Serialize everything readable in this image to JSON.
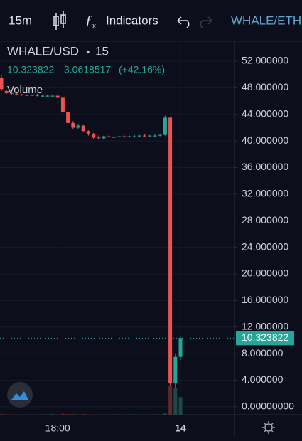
{
  "toolbar": {
    "interval": "15m",
    "indicators": "Indicators",
    "symbol_tab": "WHALE/ETH"
  },
  "chart_data": {
    "type": "candlestick",
    "title": "WHALE/USD",
    "interval": "15",
    "change": 3.0618517,
    "change_percent": {
      "value": 42.16,
      "label": "(+42.16%)"
    },
    "up_color": "#26a69a",
    "down_color": "#ef5350",
    "categories": [
      null,
      null,
      null,
      null,
      null,
      null,
      null,
      null,
      null,
      null,
      null,
      "18:00",
      null,
      null,
      null,
      null,
      null,
      null,
      null,
      null,
      null,
      null,
      null,
      null,
      null,
      null,
      null,
      null,
      null,
      null,
      null,
      null,
      null,
      null,
      null,
      "14"
    ],
    "series": [
      {
        "name": "WHALE/USD",
        "open": [
          49.5,
          47.5,
          47.2,
          47.1,
          47.0,
          46.9,
          46.9,
          46.9,
          46.8,
          46.8,
          46.8,
          46.8,
          46.5,
          44.3,
          42.7,
          42.0,
          42.3,
          41.5,
          41.0,
          40.5,
          40.4,
          40.7,
          40.6,
          40.6,
          40.7,
          40.6,
          40.7,
          40.7,
          40.8,
          40.7,
          40.8,
          40.8,
          40.9,
          43.5,
          3.5,
          7.5
        ],
        "high": [
          50.0,
          47.6,
          47.3,
          47.2,
          47.1,
          47.0,
          47.0,
          47.1,
          47.0,
          47.0,
          47.0,
          47.0,
          46.8,
          44.5,
          43.0,
          42.5,
          42.4,
          41.6,
          41.2,
          40.8,
          40.8,
          40.9,
          40.8,
          40.8,
          40.9,
          40.8,
          40.9,
          40.9,
          41.0,
          40.9,
          41.0,
          41.0,
          43.8,
          43.6,
          8.0,
          10.5
        ],
        "low": [
          47.5,
          47.1,
          47.0,
          46.9,
          46.8,
          46.8,
          46.8,
          46.7,
          46.6,
          46.6,
          46.6,
          46.4,
          44.0,
          42.5,
          41.8,
          41.8,
          41.3,
          40.8,
          40.3,
          40.2,
          40.2,
          40.5,
          40.4,
          40.5,
          40.5,
          40.5,
          40.5,
          40.6,
          40.6,
          40.6,
          40.6,
          40.7,
          40.8,
          3.2,
          2.8,
          7.0
        ],
        "close": [
          47.8,
          47.2,
          47.1,
          47.0,
          46.9,
          46.9,
          46.9,
          46.8,
          46.8,
          46.8,
          46.8,
          46.5,
          44.3,
          42.7,
          42.0,
          42.3,
          41.5,
          41.0,
          40.5,
          40.4,
          40.7,
          40.6,
          40.6,
          40.7,
          40.6,
          40.7,
          40.7,
          40.8,
          40.7,
          40.8,
          40.8,
          40.9,
          43.5,
          3.5,
          7.5,
          10.323822
        ]
      }
    ],
    "volume": {
      "name": "Volume",
      "values": [
        2,
        1,
        1,
        1,
        1,
        1,
        1,
        1,
        1,
        1,
        2,
        1,
        3,
        2,
        2,
        1,
        2,
        1,
        1,
        1,
        1,
        1,
        1,
        1,
        1,
        1,
        1,
        1,
        1,
        1,
        1,
        1,
        4,
        100,
        92,
        62
      ]
    },
    "ylim": [
      -1.2,
      55
    ],
    "yticks": [
      {
        "value": 0,
        "label": "0.00000000"
      },
      {
        "value": 4,
        "label": "4.000000"
      },
      {
        "value": 8,
        "label": "8.000000"
      },
      {
        "value": 12,
        "label": "12.000000"
      },
      {
        "value": 16,
        "label": "16.000000"
      },
      {
        "value": 20,
        "label": "20.000000"
      },
      {
        "value": 24,
        "label": "24.000000"
      },
      {
        "value": 28,
        "label": "28.000000"
      },
      {
        "value": 32,
        "label": "32.000000"
      },
      {
        "value": 36,
        "label": "36.000000"
      },
      {
        "value": 40,
        "label": "40.000000"
      },
      {
        "value": 44,
        "label": "44.000000"
      },
      {
        "value": 48,
        "label": "48.000000"
      },
      {
        "value": 52,
        "label": "52.000000"
      }
    ],
    "grid": true
  }
}
